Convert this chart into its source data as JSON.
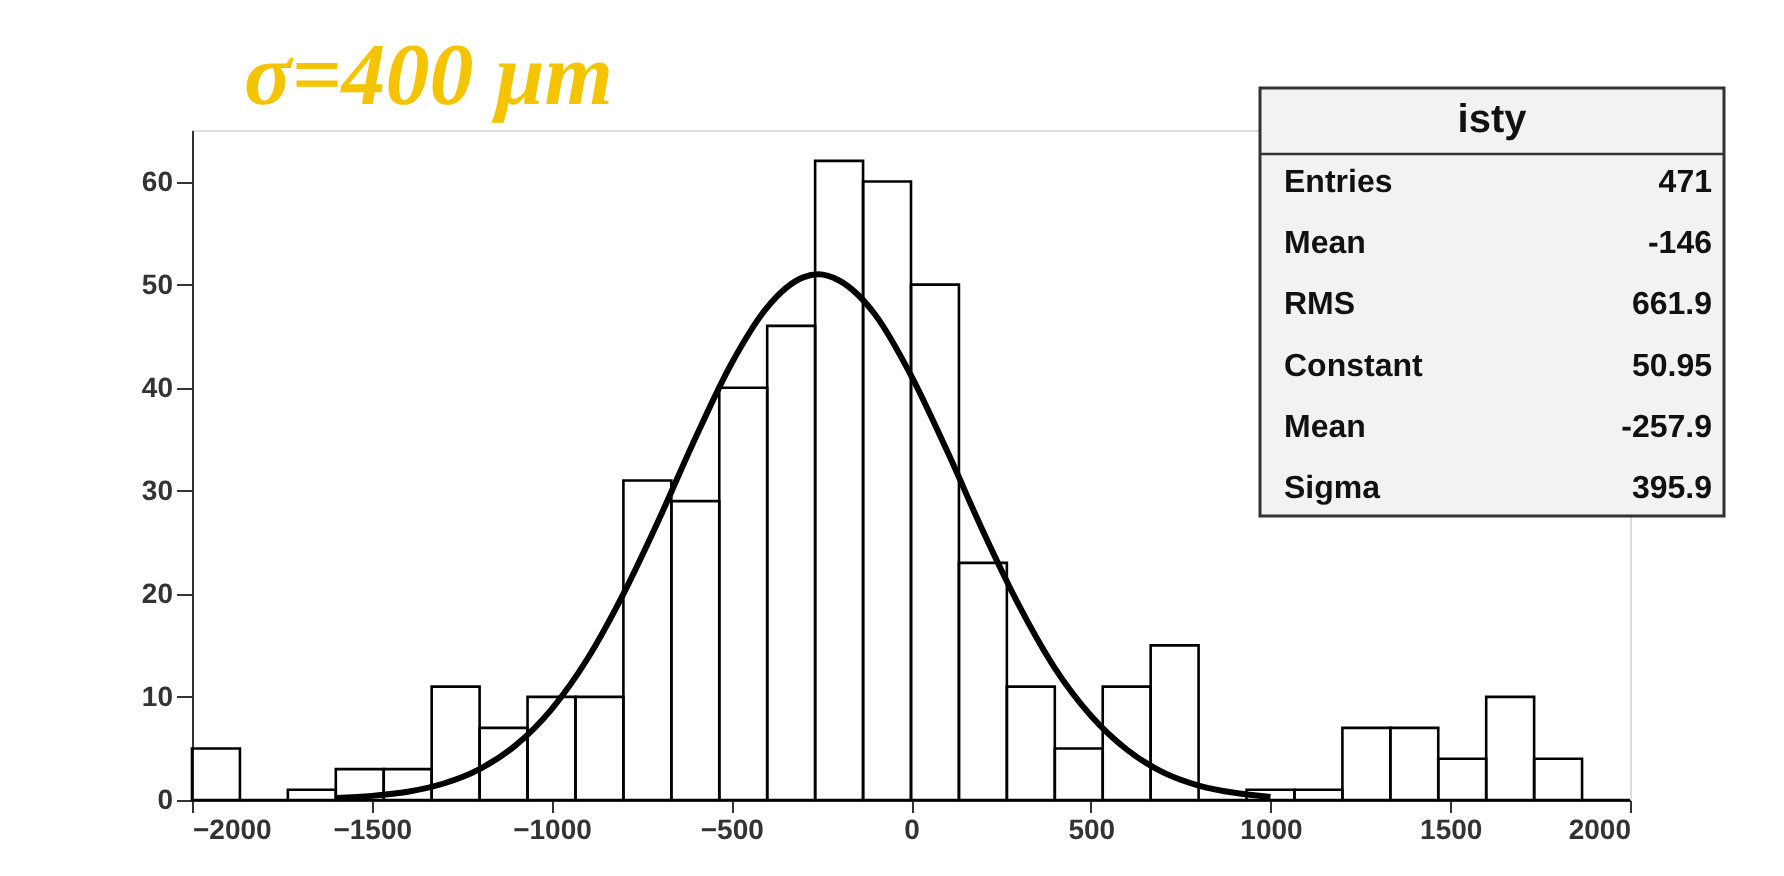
{
  "chart_data": {
    "type": "histogram",
    "title": "σ=400 μm",
    "series": [
      {
        "color": "#000000",
        "bins": [
          -2000,
          -1866.67,
          -1733.33,
          -1600,
          -1466.67,
          -1333.33,
          -1200,
          -1066.67,
          -933.33,
          -800,
          -666.67,
          -533.33,
          -400,
          -266.67,
          -133.33,
          0,
          133.33,
          266.67,
          400,
          533.33,
          666.67,
          800,
          933.33,
          1066.67,
          1200,
          1333.33,
          1466.67,
          1600,
          1733.33,
          1866.67,
          2000
        ],
        "values": [
          5,
          0,
          1,
          3,
          3,
          11,
          7,
          10,
          10,
          31,
          29,
          40,
          46,
          62,
          60,
          50,
          23,
          11,
          5,
          11,
          15,
          0,
          1,
          1,
          7,
          7,
          4,
          10,
          4,
          0
        ]
      },
      {
        "type": "line",
        "color": "#000000",
        "x": [
          -1600,
          -1500,
          -1400,
          -1300,
          -1200,
          -1100,
          -1000,
          -900,
          -800,
          -700,
          -600,
          -500,
          -400,
          -300,
          -257.9,
          -200,
          -100,
          0,
          100,
          200,
          300,
          400,
          500,
          600,
          700,
          800,
          900,
          1000
        ],
        "values": [
          0.2,
          0.4,
          0.8,
          1.6,
          3.0,
          5.3,
          8.8,
          13.7,
          20.0,
          27.3,
          35.1,
          42.3,
          47.8,
          50.7,
          51.0,
          50.4,
          47.1,
          41.2,
          33.9,
          26.1,
          18.9,
          12.8,
          8.2,
          4.9,
          2.7,
          1.4,
          0.7,
          0.3
        ]
      }
    ],
    "xlim": [
      -2000,
      2000
    ],
    "xticks": [
      -2000,
      -1500,
      -1000,
      -500,
      0,
      500,
      1000,
      1500,
      2000
    ],
    "ylim": [
      0,
      65
    ],
    "yticks": [
      0,
      10,
      20,
      30,
      40,
      50,
      60
    ],
    "grid": false,
    "annotations": [
      "isty",
      "Entries",
      "471",
      "Mean",
      "-146",
      "RMS",
      "661.9",
      "Constant",
      "50.95",
      "Mean",
      "-257.9",
      "Sigma",
      "395.9"
    ]
  }
}
